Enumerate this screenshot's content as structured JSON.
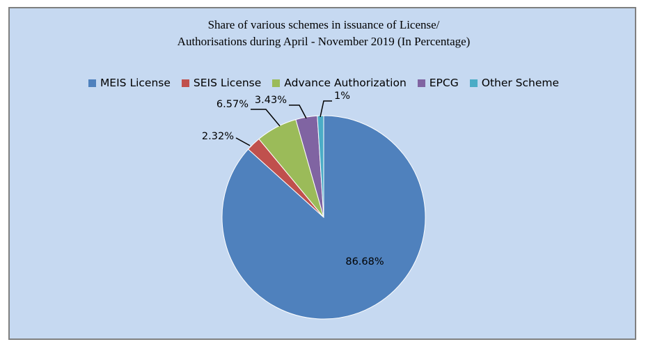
{
  "chart_data": {
    "type": "pie",
    "title_lines": [
      "Share of various schemes in issuance of License/",
      "Authorisations during April - November 2019 (In Percentage)"
    ],
    "legend_position": "top",
    "slices": [
      {
        "name": "MEIS License",
        "value": 86.68,
        "label": "86.68%",
        "color": "#4f81bd"
      },
      {
        "name": "SEIS License",
        "value": 2.32,
        "label": "2.32%",
        "color": "#c0504d"
      },
      {
        "name": "Advance Authorization",
        "value": 6.57,
        "label": "6.57%",
        "color": "#9bbb59"
      },
      {
        "name": "EPCG",
        "value": 3.43,
        "label": "3.43%",
        "color": "#8064a2"
      },
      {
        "name": "Other Scheme",
        "value": 1,
        "label": "1%",
        "color": "#4bacc6"
      }
    ]
  }
}
